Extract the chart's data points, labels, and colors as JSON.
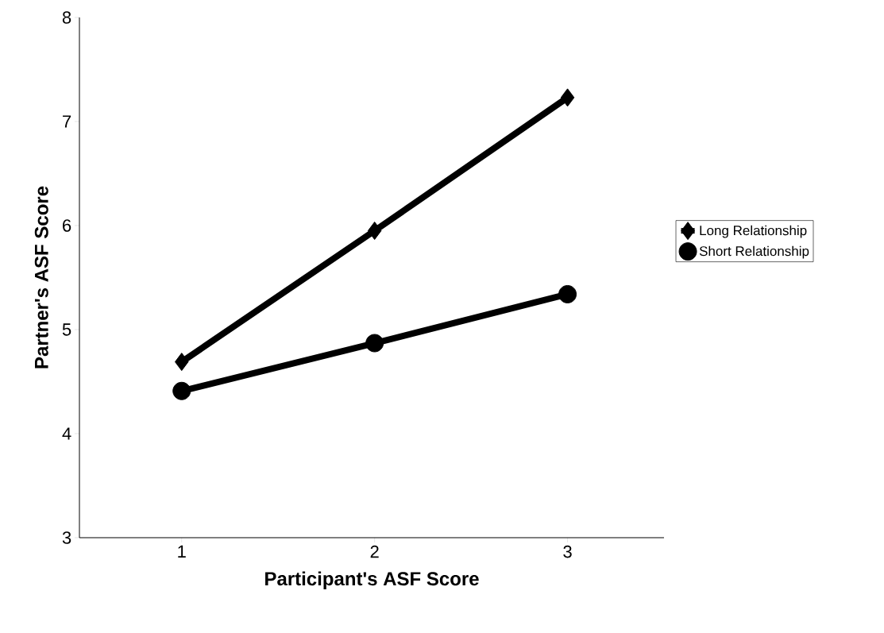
{
  "chart_data": {
    "type": "line",
    "xlabel": "Participant's ASF Score",
    "ylabel": "Partner's ASF Score",
    "categories": [
      "1",
      "2",
      "3"
    ],
    "series": [
      {
        "name": "Long Relationship",
        "color": "#000000",
        "marker": "diamond",
        "values": [
          4.69,
          5.95,
          7.23
        ]
      },
      {
        "name": "Short Relationship",
        "color": "#000000",
        "marker": "circle",
        "values": [
          4.41,
          4.87,
          5.34
        ]
      }
    ],
    "ylim": [
      3,
      8
    ],
    "yticks": [
      3,
      4,
      5,
      6,
      7,
      8
    ],
    "legend": "right",
    "line_style": "solid"
  }
}
